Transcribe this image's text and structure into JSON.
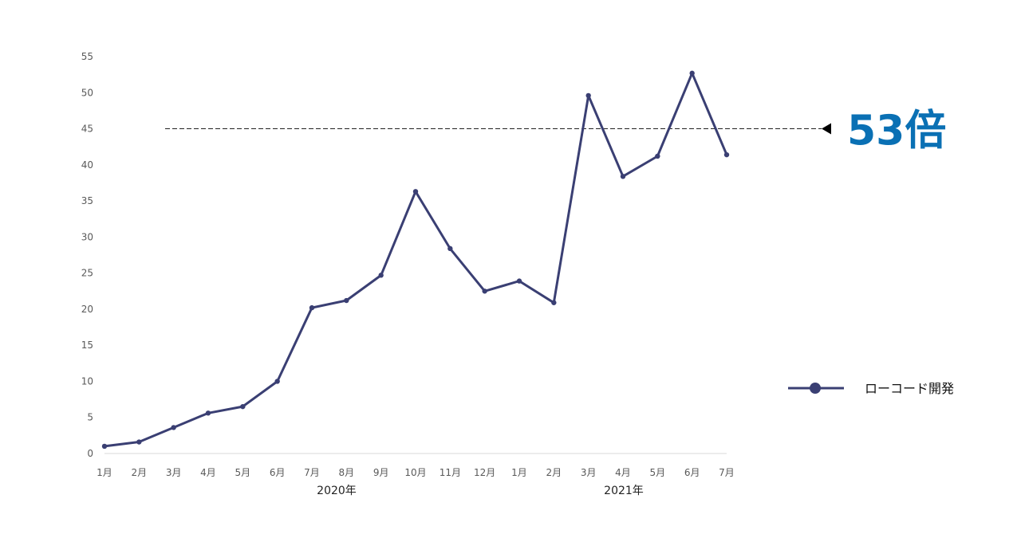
{
  "chart_data": {
    "type": "line",
    "categories": [
      "1月",
      "2月",
      "3月",
      "4月",
      "5月",
      "6月",
      "7月",
      "8月",
      "9月",
      "10月",
      "11月",
      "12月",
      "1月",
      "2月",
      "3月",
      "4月",
      "5月",
      "6月",
      "7月"
    ],
    "category_groups": [
      {
        "label": "2020年",
        "start": 0,
        "end": 11
      },
      {
        "label": "2021年",
        "start": 12,
        "end": 18
      }
    ],
    "series": [
      {
        "name": "ローコード開発",
        "color": "#3a3f73",
        "values": [
          1.0,
          1.6,
          3.6,
          5.6,
          6.5,
          10.0,
          20.2,
          21.2,
          24.7,
          36.3,
          28.4,
          22.5,
          23.9,
          20.9,
          49.6,
          38.4,
          41.2,
          52.7,
          41.4
        ]
      }
    ],
    "ylim": [
      0,
      55
    ],
    "yticks": [
      0,
      5,
      10,
      15,
      20,
      25,
      30,
      35,
      40,
      45,
      50,
      55
    ],
    "reference_line": {
      "value": 45,
      "style": "dashed"
    },
    "annotation": {
      "text": "53倍",
      "color": "#0a70b4"
    },
    "legend_position": "right",
    "grid": false
  }
}
